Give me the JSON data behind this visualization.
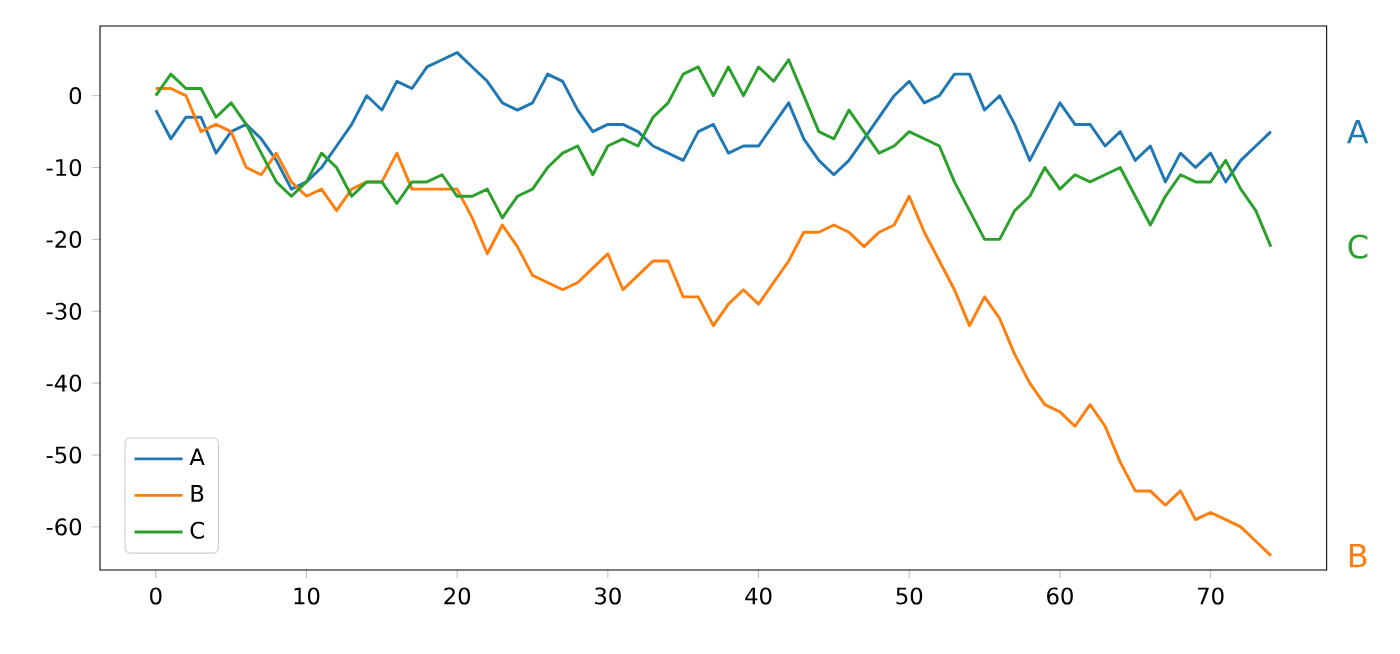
{
  "chart_data": {
    "type": "line",
    "x": [
      0,
      1,
      2,
      3,
      4,
      5,
      6,
      7,
      8,
      9,
      10,
      11,
      12,
      13,
      14,
      15,
      16,
      17,
      18,
      19,
      20,
      21,
      22,
      23,
      24,
      25,
      26,
      27,
      28,
      29,
      30,
      31,
      32,
      33,
      34,
      35,
      36,
      37,
      38,
      39,
      40,
      41,
      42,
      43,
      44,
      45,
      46,
      47,
      48,
      49,
      50,
      51,
      52,
      53,
      54,
      55,
      56,
      57,
      58,
      59,
      60,
      61,
      62,
      63,
      64,
      65,
      66,
      67,
      68,
      69,
      70,
      71,
      72,
      73,
      74
    ],
    "series": [
      {
        "name": "A",
        "color": "#1f77b4",
        "values": [
          -2,
          -6,
          -3,
          -3,
          -8,
          -5,
          -4,
          -6,
          -9,
          -13,
          -12,
          -10,
          -7,
          -4,
          0,
          -2,
          2,
          1,
          4,
          5,
          6,
          4,
          2,
          -1,
          -2,
          -1,
          3,
          2,
          -2,
          -5,
          -4,
          -4,
          -5,
          -7,
          -8,
          -9,
          -5,
          -4,
          -8,
          -7,
          -7,
          -4,
          -1,
          -6,
          -9,
          -11,
          -9,
          -6,
          -3,
          0,
          2,
          -1,
          0,
          3,
          3,
          -2,
          0,
          -4,
          -9,
          -5,
          -1,
          -4,
          -4,
          -7,
          -5,
          -9,
          -7,
          -12,
          -8,
          -10,
          -8,
          -12,
          -9,
          -7,
          -5
        ]
      },
      {
        "name": "B",
        "color": "#ff7f0e",
        "values": [
          1,
          1,
          0,
          -5,
          -4,
          -5,
          -10,
          -11,
          -8,
          -12,
          -14,
          -13,
          -16,
          -13,
          -12,
          -12,
          -8,
          -13,
          -13,
          -13,
          -13,
          -17,
          -22,
          -18,
          -21,
          -25,
          -26,
          -27,
          -26,
          -24,
          -22,
          -27,
          -25,
          -23,
          -23,
          -28,
          -28,
          -32,
          -29,
          -27,
          -29,
          -26,
          -23,
          -19,
          -19,
          -18,
          -19,
          -21,
          -19,
          -18,
          -14,
          -19,
          -23,
          -27,
          -32,
          -28,
          -31,
          -36,
          -40,
          -43,
          -44,
          -46,
          -43,
          -46,
          -51,
          -55,
          -55,
          -57,
          -55,
          -59,
          -58,
          -59,
          -60,
          -62,
          -64
        ]
      },
      {
        "name": "C",
        "color": "#2ca02c",
        "values": [
          0,
          3,
          1,
          1,
          -3,
          -1,
          -4,
          -8,
          -12,
          -14,
          -12,
          -8,
          -10,
          -14,
          -12,
          -12,
          -15,
          -12,
          -12,
          -11,
          -14,
          -14,
          -13,
          -17,
          -14,
          -13,
          -10,
          -8,
          -7,
          -11,
          -7,
          -6,
          -7,
          -3,
          -1,
          3,
          4,
          0,
          4,
          0,
          4,
          2,
          5,
          0,
          -5,
          -6,
          -2,
          -5,
          -8,
          -7,
          -5,
          -6,
          -7,
          -12,
          -16,
          -20,
          -20,
          -16,
          -14,
          -10,
          -13,
          -11,
          -12,
          -11,
          -10,
          -14,
          -18,
          -14,
          -11,
          -12,
          -12,
          -9,
          -13,
          -16,
          -21
        ]
      }
    ],
    "xlim": [
      -3.7,
      77.7
    ],
    "ylim": [
      -66,
      9.7
    ],
    "xticks": [
      0,
      10,
      20,
      30,
      40,
      50,
      60,
      70
    ],
    "yticks": [
      -60,
      -50,
      -40,
      -30,
      -20,
      -10,
      0
    ],
    "legend": "bottom left"
  }
}
